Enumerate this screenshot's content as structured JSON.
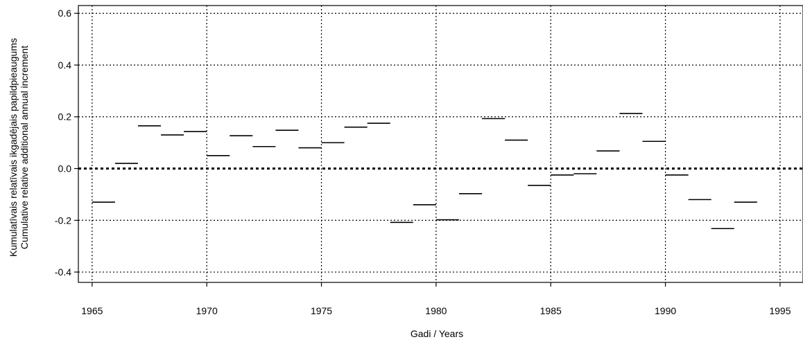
{
  "chart_data": {
    "type": "scatter",
    "xlabel": "Gadi / Years",
    "ylabel_line1": "Kumulatīvais relatīvais ikgadējais papildpieaugums",
    "ylabel_line2": "Cumulative relative additional annual increment",
    "xlim": [
      1964.4,
      1996
    ],
    "ylim": [
      -0.44,
      0.63
    ],
    "xticks": [
      1965,
      1970,
      1975,
      1980,
      1985,
      1990,
      1995
    ],
    "yticks": [
      -0.4,
      -0.2,
      0.0,
      0.2,
      0.4,
      0.6
    ],
    "ytick_labels": [
      "-0.4",
      "-0.2",
      "0.0",
      "0.2",
      "0.4",
      "0.6"
    ],
    "grid": true,
    "reference_line": 0.0,
    "series": [
      {
        "style": "horizontal-segment",
        "points": [
          {
            "x": 1965.5,
            "y": -0.13
          },
          {
            "x": 1966.5,
            "y": 0.02
          },
          {
            "x": 1967.5,
            "y": 0.165
          },
          {
            "x": 1968.5,
            "y": 0.13
          },
          {
            "x": 1969.5,
            "y": 0.143
          },
          {
            "x": 1970.5,
            "y": 0.05
          },
          {
            "x": 1971.5,
            "y": 0.127
          },
          {
            "x": 1972.5,
            "y": 0.085
          },
          {
            "x": 1973.5,
            "y": 0.148
          },
          {
            "x": 1974.5,
            "y": 0.08
          },
          {
            "x": 1975.5,
            "y": 0.1
          },
          {
            "x": 1976.5,
            "y": 0.16
          },
          {
            "x": 1977.5,
            "y": 0.175
          },
          {
            "x": 1978.5,
            "y": -0.208
          },
          {
            "x": 1979.5,
            "y": -0.14
          },
          {
            "x": 1980.5,
            "y": -0.198
          },
          {
            "x": 1981.5,
            "y": -0.097
          },
          {
            "x": 1982.5,
            "y": 0.193
          },
          {
            "x": 1983.5,
            "y": 0.11
          },
          {
            "x": 1984.5,
            "y": -0.065
          },
          {
            "x": 1985.5,
            "y": -0.025
          },
          {
            "x": 1986.5,
            "y": -0.02
          },
          {
            "x": 1987.5,
            "y": 0.068
          },
          {
            "x": 1988.5,
            "y": 0.213
          },
          {
            "x": 1989.5,
            "y": 0.105
          },
          {
            "x": 1990.5,
            "y": -0.025
          },
          {
            "x": 1991.5,
            "y": -0.12
          },
          {
            "x": 1992.5,
            "y": -0.232
          },
          {
            "x": 1993.5,
            "y": -0.13
          }
        ]
      }
    ]
  }
}
